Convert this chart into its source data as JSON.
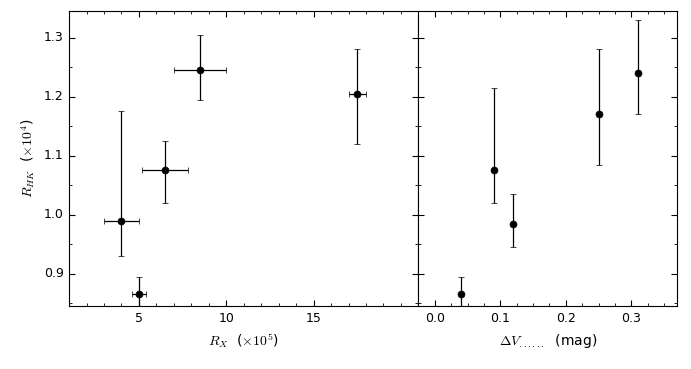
{
  "left_panel": {
    "x": [
      4.0,
      5.0,
      6.5,
      8.5,
      17.5
    ],
    "y": [
      0.99,
      0.865,
      1.075,
      1.245,
      1.205
    ],
    "xerr_lo": [
      1.0,
      0.4,
      1.3,
      1.5,
      0.5
    ],
    "xerr_hi": [
      1.0,
      0.4,
      1.3,
      1.5,
      0.5
    ],
    "yerr_lo": [
      0.06,
      0.02,
      0.055,
      0.05,
      0.085
    ],
    "yerr_hi": [
      0.185,
      0.03,
      0.05,
      0.06,
      0.075
    ],
    "xlim": [
      1,
      21
    ],
    "xticks": [
      5,
      10,
      15
    ],
    "ylim": [
      0.845,
      1.345
    ]
  },
  "right_panel": {
    "x": [
      0.04,
      0.09,
      0.12,
      0.25,
      0.31
    ],
    "y": [
      0.865,
      1.075,
      0.985,
      1.17,
      1.24
    ],
    "yerr_lo": [
      0.02,
      0.055,
      0.04,
      0.085,
      0.07
    ],
    "yerr_hi": [
      0.03,
      0.14,
      0.05,
      0.11,
      0.09
    ],
    "xlim": [
      -0.025,
      0.37
    ],
    "xticks": [
      0,
      0.1,
      0.2,
      0.3
    ],
    "ylim": [
      0.845,
      1.345
    ]
  },
  "yticks": [
    0.9,
    1.0,
    1.1,
    1.2,
    1.3
  ],
  "yticklabels": [
    "0.9",
    "1.0",
    "1.1",
    "1.2",
    "1.3"
  ],
  "marker_size": 5,
  "capsize": 2,
  "elinewidth": 0.9,
  "capthick": 0.9,
  "tick_labelsize": 9,
  "axis_labelsize": 10
}
